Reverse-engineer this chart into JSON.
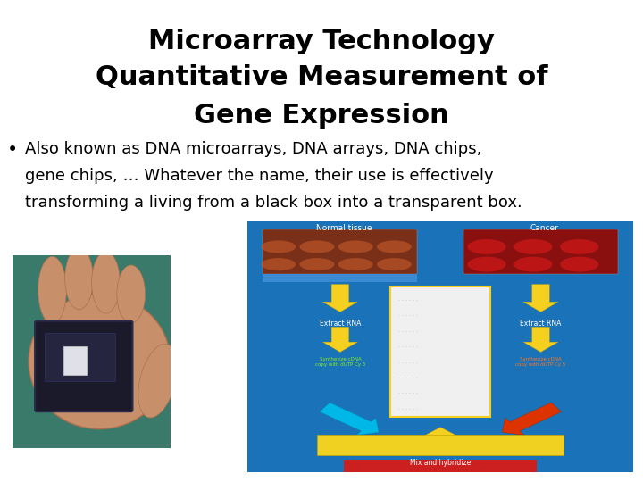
{
  "title_line1": "Microarray Technology",
  "title_line2": "Quantitative Measurement of",
  "title_line3": "Gene Expression",
  "bullet_line1": "Also known as DNA microarrays, DNA arrays, DNA chips,",
  "bullet_line2": "gene chips, … Whatever the name, their use is effectively",
  "bullet_line3": "transforming a living from a black box into a transparent box.",
  "background_color": "#ffffff",
  "title_color": "#000000",
  "bullet_color": "#000000",
  "title_fontsize": 22,
  "bullet_fontsize": 13,
  "diagram_bg": "#1a72b8",
  "diagram_bg2": "#1565a8",
  "normal_tissue_color": "#7a3020",
  "cancer_tissue_color": "#8b1a1a",
  "sep_bar_color": "#3a82c8",
  "arrow_yellow": "#f5d020",
  "arrow_cyan": "#00b8e8",
  "arrow_red": "#dd3300",
  "mix_bar_color": "#f0d020",
  "synth_green": "#88ee22",
  "synth_red": "#ff7722",
  "center_box_color": "#ffffff",
  "dot_color": "#999999",
  "bottom_bar_color": "#cc2020",
  "label_color": "#ffffff"
}
